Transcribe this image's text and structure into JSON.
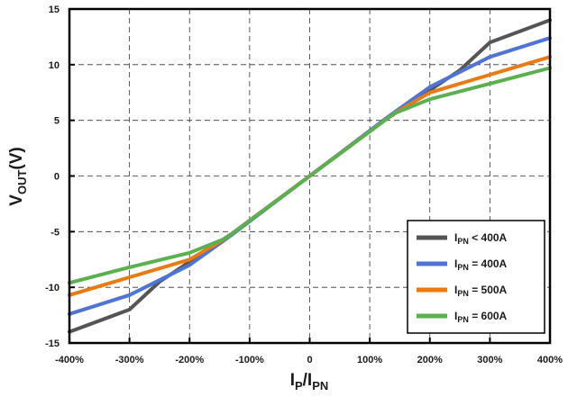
{
  "chart_data": {
    "type": "line",
    "x_tick_labels": [
      "-400%",
      "-300%",
      "-200%",
      "-100%",
      "0",
      "100%",
      "200%",
      "300%",
      "400%"
    ],
    "x_ticks": [
      -400,
      -300,
      -200,
      -100,
      0,
      100,
      200,
      300,
      400
    ],
    "y_tick_labels": [
      "15",
      "10",
      "5",
      "0",
      "-5",
      "-10",
      "-15"
    ],
    "y_ticks": [
      15,
      10,
      5,
      0,
      -5,
      -10,
      -15
    ],
    "xlim": [
      -400,
      400
    ],
    "ylim": [
      -15,
      15
    ],
    "grid": true,
    "legend_position": "bottom-right",
    "xlabel": {
      "main": "I",
      "sub1": "P",
      "slash": "/I",
      "sub2": "PN"
    },
    "ylabel": {
      "main": "V",
      "sub": "OUT",
      "unit": "(V)"
    },
    "series": [
      {
        "label_main": "I",
        "label_sub": "PN",
        "label_rest": " < 400A",
        "color": "#555555",
        "x": [
          -400,
          -300,
          -250,
          -130,
          0,
          130,
          250,
          300,
          400
        ],
        "y": [
          -14,
          -12,
          -9.5,
          -5.2,
          0,
          5.2,
          9.5,
          12,
          14
        ]
      },
      {
        "label_main": "I",
        "label_sub": "PN",
        "label_rest": " = 400A",
        "color": "#4f74d6",
        "x": [
          -400,
          -300,
          -200,
          -130,
          0,
          130,
          200,
          300,
          400
        ],
        "y": [
          -12.4,
          -10.7,
          -8,
          -5.3,
          0,
          5.3,
          8,
          10.7,
          12.4
        ]
      },
      {
        "label_main": "I",
        "label_sub": "PN",
        "label_rest": " = 500A",
        "color": "#e97b12",
        "x": [
          -400,
          -300,
          -200,
          -140,
          0,
          140,
          200,
          300,
          400
        ],
        "y": [
          -10.7,
          -9.1,
          -7.5,
          -5.6,
          0,
          5.6,
          7.5,
          9.1,
          10.7
        ]
      },
      {
        "label_main": "I",
        "label_sub": "PN",
        "label_rest": " = 600A",
        "color": "#5bb04f",
        "x": [
          -400,
          -300,
          -200,
          -140,
          0,
          140,
          200,
          300,
          400
        ],
        "y": [
          -9.6,
          -8.2,
          -6.9,
          -5.6,
          0,
          5.6,
          6.9,
          8.3,
          9.7
        ]
      }
    ]
  }
}
